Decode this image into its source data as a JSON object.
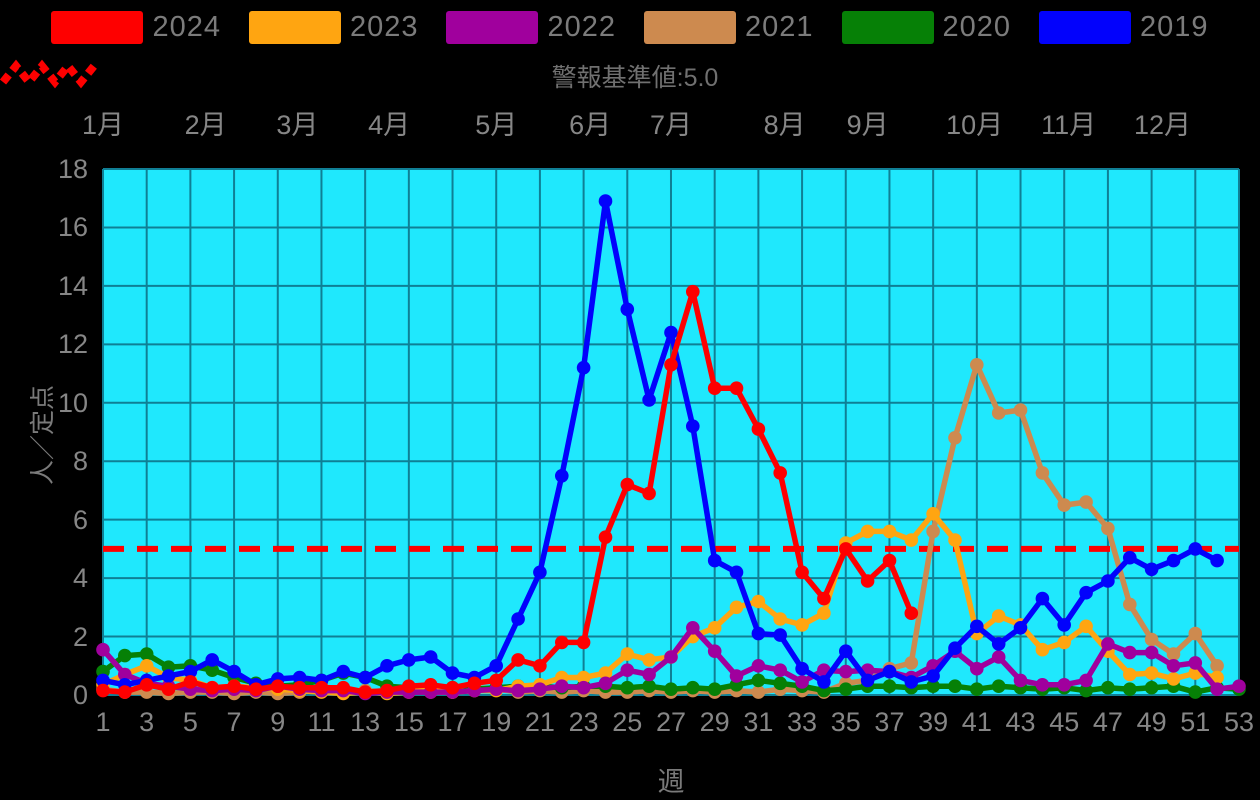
{
  "figure": {
    "background": "#000000",
    "legend": {
      "items": [
        {
          "label": "2024",
          "color": "#fe0000"
        },
        {
          "label": "2023",
          "color": "#ffa511"
        },
        {
          "label": "2022",
          "color": "#a0009d"
        },
        {
          "label": "2021",
          "color": "#cd8a4f"
        },
        {
          "label": "2020",
          "color": "#068006"
        },
        {
          "label": "2019",
          "color": "#0202fc"
        }
      ]
    },
    "threshold_legend": {
      "label": "警報基準値:5.0",
      "icon": "red-dashed-zigzag"
    }
  },
  "chart_data": {
    "type": "line",
    "title": "",
    "xlabel": "週",
    "ylabel": "人／定点",
    "xlim": [
      1,
      53
    ],
    "ylim": [
      0,
      18
    ],
    "x_ticks": [
      1,
      3,
      5,
      7,
      9,
      11,
      13,
      15,
      17,
      19,
      21,
      23,
      25,
      27,
      29,
      31,
      33,
      35,
      37,
      39,
      41,
      43,
      45,
      47,
      49,
      51,
      53
    ],
    "y_ticks": [
      0,
      2,
      4,
      6,
      8,
      10,
      12,
      14,
      16,
      18
    ],
    "month_labels": [
      {
        "label": "1月",
        "week": 1
      },
      {
        "label": "2月",
        "week": 5.7
      },
      {
        "label": "3月",
        "week": 9.9
      },
      {
        "label": "4月",
        "week": 14.1
      },
      {
        "label": "5月",
        "week": 19.0
      },
      {
        "label": "6月",
        "week": 23.3
      },
      {
        "label": "7月",
        "week": 27.0
      },
      {
        "label": "8月",
        "week": 32.2
      },
      {
        "label": "9月",
        "week": 36.0
      },
      {
        "label": "10月",
        "week": 40.9
      },
      {
        "label": "11月",
        "week": 45.2
      },
      {
        "label": "12月",
        "week": 49.5
      }
    ],
    "grid": true,
    "plot_bg": "#1fe8fd",
    "grid_color": "#0f7f95",
    "threshold": {
      "value": 5.0,
      "label": "警報基準値:5.0",
      "color": "#fe0000",
      "style": "dashed"
    },
    "legend_position": "top",
    "series": [
      {
        "name": "2021",
        "color": "#cd8a4f",
        "start_week": 1,
        "values": [
          0.2,
          0.1,
          0.1,
          0.05,
          0.1,
          0.1,
          0.05,
          0.1,
          0.05,
          0.1,
          0.3,
          0.1,
          0.15,
          0.1,
          0.15,
          0.1,
          0.1,
          0.25,
          0.2,
          0.1,
          0.15,
          0.1,
          0.15,
          0.1,
          0.1,
          0.15,
          0.1,
          0.15,
          0.1,
          0.15,
          0.1,
          0.2,
          0.15,
          0.1,
          0.4,
          0.5,
          0.9,
          1.1,
          5.6,
          8.8,
          11.3,
          9.65,
          9.75,
          7.6,
          6.5,
          6.6,
          5.7,
          3.1,
          1.9,
          1.4,
          2.1,
          1.0
        ]
      },
      {
        "name": "2020",
        "color": "#068006",
        "start_week": 1,
        "values": [
          0.8,
          1.35,
          1.4,
          0.95,
          1.0,
          0.85,
          0.6,
          0.4,
          0.3,
          0.35,
          0.5,
          0.75,
          0.6,
          0.3,
          0.25,
          0.3,
          0.25,
          0.2,
          0.25,
          0.3,
          0.3,
          0.25,
          0.3,
          0.3,
          0.25,
          0.3,
          0.2,
          0.25,
          0.2,
          0.35,
          0.5,
          0.4,
          0.3,
          0.15,
          0.2,
          0.3,
          0.3,
          0.25,
          0.3,
          0.3,
          0.2,
          0.3,
          0.25,
          0.2,
          0.25,
          0.15,
          0.25,
          0.2,
          0.25,
          0.3,
          0.1,
          0.25,
          0.2
        ]
      },
      {
        "name": "2023",
        "color": "#ffa511",
        "start_week": 1,
        "values": [
          0.35,
          0.7,
          1.0,
          0.6,
          0.5,
          0.25,
          0.3,
          0.25,
          0.2,
          0.15,
          0.1,
          0.05,
          0.1,
          0.05,
          0.1,
          0.2,
          0.1,
          0.15,
          0.15,
          0.3,
          0.35,
          0.6,
          0.6,
          0.75,
          1.4,
          1.2,
          1.3,
          2.0,
          2.3,
          3.0,
          3.2,
          2.6,
          2.4,
          2.8,
          5.2,
          5.6,
          5.6,
          5.3,
          6.2,
          5.3,
          2.1,
          2.7,
          2.4,
          1.55,
          1.8,
          2.35,
          1.5,
          0.7,
          0.75,
          0.55,
          0.75,
          0.6
        ]
      },
      {
        "name": "2022",
        "color": "#a0009d",
        "start_week": 1,
        "values": [
          1.55,
          0.7,
          0.4,
          0.3,
          0.2,
          0.15,
          0.2,
          0.15,
          0.3,
          0.2,
          0.15,
          0.15,
          0.05,
          0.1,
          0.1,
          0.1,
          0.1,
          0.15,
          0.2,
          0.15,
          0.2,
          0.3,
          0.25,
          0.4,
          0.85,
          0.7,
          1.3,
          2.3,
          1.5,
          0.65,
          1.0,
          0.85,
          0.45,
          0.85,
          0.8,
          0.85,
          0.8,
          0.6,
          1.0,
          1.5,
          0.9,
          1.3,
          0.5,
          0.35,
          0.35,
          0.5,
          1.75,
          1.45,
          1.45,
          1.0,
          1.1,
          0.2,
          0.3
        ]
      },
      {
        "name": "2019",
        "color": "#0202fc",
        "start_week": 1,
        "values": [
          0.5,
          0.35,
          0.5,
          0.65,
          0.8,
          1.2,
          0.8,
          0.35,
          0.55,
          0.6,
          0.5,
          0.8,
          0.6,
          1.0,
          1.2,
          1.3,
          0.75,
          0.6,
          1.0,
          2.6,
          4.2,
          7.5,
          11.2,
          16.9,
          13.2,
          10.1,
          12.4,
          9.2,
          4.6,
          4.2,
          2.1,
          2.05,
          0.9,
          0.45,
          1.5,
          0.5,
          0.8,
          0.45,
          0.65,
          1.6,
          2.35,
          1.75,
          2.3,
          3.3,
          2.4,
          3.5,
          3.9,
          4.7,
          4.3,
          4.6,
          5.0,
          4.6
        ]
      },
      {
        "name": "2024",
        "color": "#fe0000",
        "start_week": 1,
        "values": [
          0.15,
          0.1,
          0.35,
          0.2,
          0.45,
          0.25,
          0.3,
          0.2,
          0.3,
          0.25,
          0.25,
          0.25,
          0.1,
          0.15,
          0.3,
          0.35,
          0.25,
          0.4,
          0.5,
          1.2,
          1.0,
          1.8,
          1.8,
          5.4,
          7.2,
          6.9,
          11.3,
          13.8,
          10.5,
          10.5,
          9.1,
          7.6,
          4.2,
          3.3,
          5.0,
          3.9,
          4.6,
          2.8
        ]
      }
    ]
  }
}
